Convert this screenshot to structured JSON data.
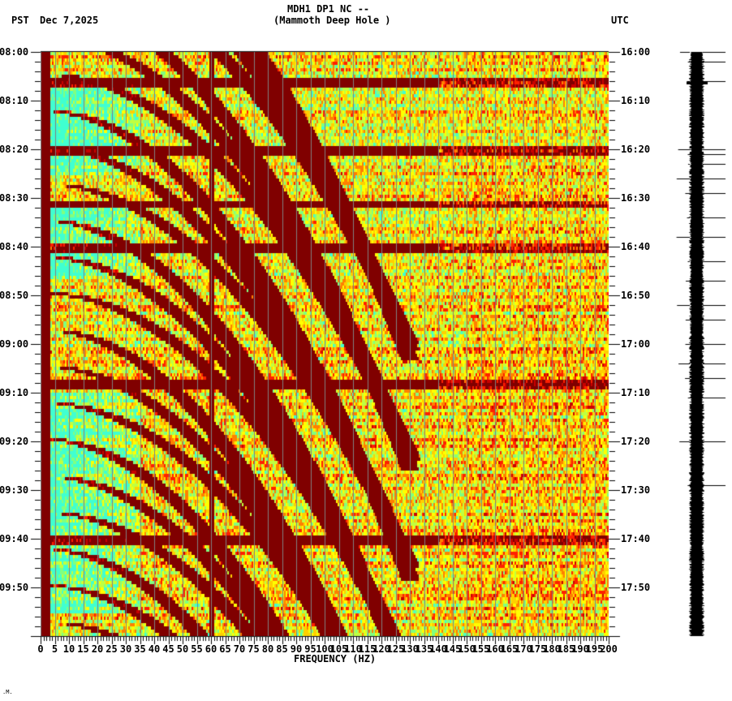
{
  "header": {
    "title_line1": "MDH1 DP1 NC --",
    "title_line2": "(Mammoth Deep Hole )",
    "left_timezone": "PST",
    "date": "Dec 7,2025",
    "right_timezone": "UTC"
  },
  "corner_mark": ".M.",
  "colors": {
    "background": "#ffffff",
    "gridline": "#808080",
    "colormap": [
      "#800000",
      "#c80000",
      "#ff2000",
      "#ff8000",
      "#ffd000",
      "#ffff00",
      "#c0ff40",
      "#80ff80",
      "#40ffd0",
      "#00e0ff",
      "#00a0ff"
    ]
  },
  "chart_data": {
    "type": "heatmap",
    "title": "MDH1 DP1 NC -- (Mammoth Deep Hole )",
    "subtitle": "PST Dec 7,2025",
    "xlabel": "FREQUENCY (HZ)",
    "ylabel_left": "PST",
    "ylabel_right": "UTC",
    "xlim": [
      0,
      200
    ],
    "x_ticks": [
      "0",
      "5",
      "10",
      "15",
      "20",
      "25",
      "30",
      "35",
      "40",
      "45",
      "50",
      "55",
      "60",
      "65",
      "70",
      "75",
      "80",
      "85",
      "90",
      "95",
      "100",
      "105",
      "110",
      "115",
      "120",
      "125",
      "130",
      "135",
      "140",
      "145",
      "150",
      "155",
      "160",
      "165",
      "170",
      "175",
      "180",
      "185",
      "190",
      "195",
      "200"
    ],
    "y_ticks_left": [
      "08:00",
      "08:10",
      "08:20",
      "08:30",
      "08:40",
      "08:50",
      "09:00",
      "09:10",
      "09:20",
      "09:30",
      "09:40",
      "09:50"
    ],
    "y_ticks_right": [
      "16:00",
      "16:10",
      "16:20",
      "16:30",
      "16:40",
      "16:50",
      "17:00",
      "17:10",
      "17:20",
      "17:30",
      "17:40",
      "17:50"
    ],
    "time_range_pst": [
      "08:00",
      "10:00"
    ],
    "time_range_utc": [
      "16:00",
      "18:00"
    ],
    "grid": true,
    "grid_every_hz": 5,
    "features": [
      {
        "name": "persistent 60 Hz line",
        "freq_hz": 60
      },
      {
        "name": "low-noise band (cyan) 0-35 Hz",
        "time_ranges_pst": [
          "08:05-08:25",
          "08:32-08:46",
          "09:10-09:45"
        ]
      },
      {
        "name": "strong broadband horizontal bands",
        "times_pst": [
          "08:06",
          "08:20",
          "08:31",
          "08:40",
          "09:08",
          "09:40"
        ]
      },
      {
        "name": "curved gliding tones increasing in frequency with time",
        "freq_range_hz": [
          0,
          125
        ]
      }
    ],
    "legend": null
  },
  "seismogram": {
    "label": "waveform trace",
    "spike_times_pst": [
      "08:00",
      "08:02",
      "08:06",
      "08:20",
      "08:21",
      "08:23",
      "08:26",
      "08:29",
      "08:34",
      "08:38",
      "08:43",
      "08:47",
      "08:52",
      "08:55",
      "09:00",
      "09:04",
      "09:07",
      "09:11",
      "09:20",
      "09:29"
    ]
  }
}
